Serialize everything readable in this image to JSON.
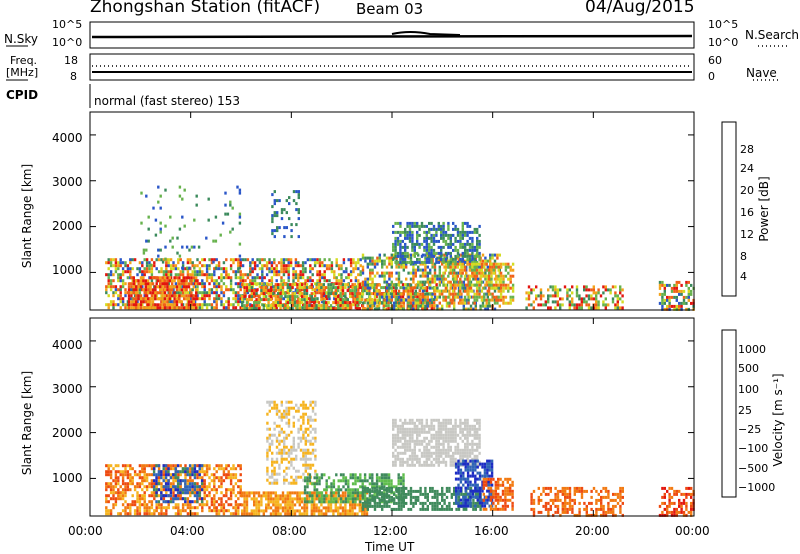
{
  "header": {
    "station": "Zhongshan Station (fitACF)",
    "beam": "Beam 03",
    "date": "04/Aug/2015"
  },
  "top_panels": {
    "nsky_label": "N.Sky",
    "nsky_ticks": [
      "10^5",
      "10^0"
    ],
    "nsearch_label": "N.Search",
    "nsearch_ticks": [
      "10^5",
      "10^0"
    ],
    "freq_label": "Freq.",
    "freq_unit": "[MHz]",
    "freq_ticks": [
      "18",
      "8"
    ],
    "nave_label": "Nave",
    "nave_ticks": [
      "60",
      "0"
    ],
    "cpid_label": "CPID",
    "cpid_text": "normal (fast stereo) 153"
  },
  "chart_data": [
    {
      "type": "heatmap",
      "name": "power",
      "ylabel": "Slant Range [km]",
      "y_ticks": [
        "1000",
        "2000",
        "3000",
        "4000"
      ],
      "ylim": [
        180,
        4500
      ],
      "xlim": [
        "00:00",
        "24:00"
      ],
      "colorbar_label": "Power [dB]",
      "colorbar_ticks": [
        "4",
        "8",
        "12",
        "16",
        "20",
        "24",
        "28"
      ],
      "colors": [
        "#0a14e6",
        "#2a56c8",
        "#3b8a5c",
        "#67b24c",
        "#d4dc22",
        "#f3a31a",
        "#f06018",
        "#e3150f"
      ],
      "clusters": [
        {
          "t0": 0.6,
          "t1": 10.8,
          "r0": 200,
          "r1": 1300,
          "lvl": [
            1,
            7
          ],
          "d": 0.6
        },
        {
          "t0": 1.5,
          "t1": 4.2,
          "r0": 200,
          "r1": 900,
          "lvl": [
            5,
            7
          ],
          "d": 0.75
        },
        {
          "t0": 6.0,
          "t1": 13.8,
          "r0": 200,
          "r1": 750,
          "lvl": [
            2,
            7
          ],
          "d": 0.7
        },
        {
          "t0": 10.8,
          "t1": 16.3,
          "r0": 200,
          "r1": 1400,
          "lvl": [
            1,
            6
          ],
          "d": 0.55
        },
        {
          "t0": 12.0,
          "t1": 15.5,
          "r0": 1200,
          "r1": 2100,
          "lvl": [
            1,
            3
          ],
          "d": 0.6
        },
        {
          "t0": 7.2,
          "t1": 8.3,
          "r0": 1800,
          "r1": 2800,
          "lvl": [
            1,
            2
          ],
          "d": 0.35
        },
        {
          "t0": 14.0,
          "t1": 16.8,
          "r0": 300,
          "r1": 1200,
          "lvl": [
            3,
            6
          ],
          "d": 0.6
        },
        {
          "t0": 17.3,
          "t1": 21.2,
          "r0": 200,
          "r1": 700,
          "lvl": [
            2,
            7
          ],
          "d": 0.45
        },
        {
          "t0": 22.6,
          "t1": 24.0,
          "r0": 200,
          "r1": 800,
          "lvl": [
            1,
            7
          ],
          "d": 0.55
        },
        {
          "t0": 2.0,
          "t1": 6.0,
          "r0": 1000,
          "r1": 2900,
          "lvl": [
            1,
            3
          ],
          "d": 0.06
        }
      ]
    },
    {
      "type": "heatmap",
      "name": "velocity",
      "ylabel": "Slant Range [km]",
      "y_ticks": [
        "1000",
        "2000",
        "3000",
        "4000"
      ],
      "ylim": [
        180,
        4500
      ],
      "xlabel": "Time UT",
      "x_ticks": [
        "00:00",
        "04:00",
        "08:00",
        "12:00",
        "16:00",
        "20:00",
        "00:00"
      ],
      "xlim": [
        "00:00",
        "24:00"
      ],
      "colorbar_label": "Velocity [m s⁻¹]",
      "colorbar_ticks": [
        "1000",
        "500",
        "100",
        "25",
        "−25",
        "−100",
        "−500",
        "−1000"
      ],
      "colors": [
        "#1c2cc4",
        "#2f64b6",
        "#3f8a5c",
        "#5fbd4c",
        "#c8c8c4",
        "#f6b420",
        "#f27a12",
        "#ee4a10",
        "#e3160e"
      ],
      "clusters": [
        {
          "t0": 0.6,
          "t1": 6.0,
          "r0": 200,
          "r1": 1300,
          "lvl": [
            5,
            7
          ],
          "d": 0.6
        },
        {
          "t0": 2.5,
          "t1": 4.5,
          "r0": 500,
          "r1": 1300,
          "lvl": [
            0,
            2
          ],
          "d": 0.5
        },
        {
          "t0": 6.0,
          "t1": 11.0,
          "r0": 200,
          "r1": 700,
          "lvl": [
            5,
            6
          ],
          "d": 0.75
        },
        {
          "t0": 7.0,
          "t1": 9.0,
          "r0": 900,
          "r1": 2700,
          "lvl": [
            4,
            5
          ],
          "d": 0.45
        },
        {
          "t0": 8.5,
          "t1": 12.5,
          "r0": 500,
          "r1": 1100,
          "lvl": [
            2,
            3
          ],
          "d": 0.6
        },
        {
          "t0": 10.8,
          "t1": 15.5,
          "r0": 300,
          "r1": 800,
          "lvl": [
            2,
            2
          ],
          "d": 0.65
        },
        {
          "t0": 12.0,
          "t1": 15.5,
          "r0": 1300,
          "r1": 2300,
          "lvl": [
            4,
            4
          ],
          "d": 0.75
        },
        {
          "t0": 14.5,
          "t1": 16.0,
          "r0": 400,
          "r1": 1400,
          "lvl": [
            0,
            1
          ],
          "d": 0.7
        },
        {
          "t0": 15.6,
          "t1": 16.8,
          "r0": 300,
          "r1": 1000,
          "lvl": [
            6,
            7
          ],
          "d": 0.6
        },
        {
          "t0": 17.5,
          "t1": 21.2,
          "r0": 200,
          "r1": 800,
          "lvl": [
            6,
            7
          ],
          "d": 0.45
        },
        {
          "t0": 22.6,
          "t1": 24.0,
          "r0": 200,
          "r1": 800,
          "lvl": [
            6,
            8
          ],
          "d": 0.5
        }
      ]
    }
  ]
}
